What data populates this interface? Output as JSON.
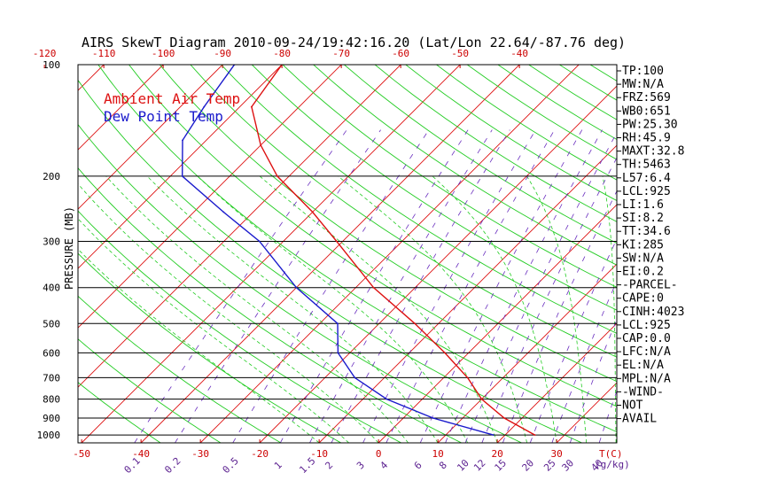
{
  "chart_data": {
    "type": "line",
    "title": "AIRS SkewT Diagram 2010-09-24/19:42:16.20 (Lat/Lon 22.64/-87.76 deg)",
    "ylabel": "PRESSURE (MB)",
    "pressure_ticks": [
      100,
      200,
      300,
      400,
      500,
      600,
      700,
      800,
      900,
      1000
    ],
    "ylim": [
      1050,
      100
    ],
    "top_temp_ticks": [
      -120,
      -110,
      -100,
      -90,
      -80,
      -70,
      -60,
      -50,
      -40
    ],
    "bottom_temp_ticks": [
      -50,
      -40,
      -30,
      -20,
      -10,
      0,
      10,
      20,
      30
    ],
    "bottom_temp_unit": "T(C)",
    "mixing_ratio_labels": [
      "0.1",
      "0.2",
      "0.5",
      "1",
      "1.5",
      "2",
      "3",
      "4",
      "6",
      "8",
      "10",
      "12",
      "15",
      "20",
      "25",
      "30",
      "40"
    ],
    "mixing_ratio_unit": "(g/kg)",
    "legend": [
      {
        "label": "Ambient Air Temp",
        "color": "#dd1111"
      },
      {
        "label": "Dew Point Temp",
        "color": "#1a1acc"
      }
    ],
    "grid": true,
    "series": [
      {
        "name": "Ambient Air Temp",
        "color": "#dd1111",
        "points": [
          {
            "p": 100,
            "t": -80
          },
          {
            "p": 130,
            "t": -78
          },
          {
            "p": 165,
            "t": -70
          },
          {
            "p": 200,
            "t": -62
          },
          {
            "p": 250,
            "t": -50
          },
          {
            "p": 300,
            "t": -41
          },
          {
            "p": 400,
            "t": -27
          },
          {
            "p": 500,
            "t": -14
          },
          {
            "p": 600,
            "t": -4
          },
          {
            "p": 700,
            "t": 4
          },
          {
            "p": 800,
            "t": 10
          },
          {
            "p": 900,
            "t": 17
          },
          {
            "p": 1000,
            "t": 25
          }
        ]
      },
      {
        "name": "Dew Point Temp",
        "color": "#1a1acc",
        "points": [
          {
            "p": 100,
            "t": -88
          },
          {
            "p": 130,
            "t": -86
          },
          {
            "p": 160,
            "t": -84
          },
          {
            "p": 200,
            "t": -78
          },
          {
            "p": 250,
            "t": -65
          },
          {
            "p": 300,
            "t": -54
          },
          {
            "p": 400,
            "t": -40
          },
          {
            "p": 500,
            "t": -27
          },
          {
            "p": 600,
            "t": -22
          },
          {
            "p": 700,
            "t": -15
          },
          {
            "p": 800,
            "t": -6
          },
          {
            "p": 900,
            "t": 5
          },
          {
            "p": 1000,
            "t": 18
          }
        ]
      }
    ]
  },
  "indices": [
    "TP:100",
    "MW:N/A",
    "FRZ:569",
    "WB0:651",
    "PW:25.30",
    "RH:45.9",
    "MAXT:32.8",
    "TH:5463",
    "L57:6.4",
    "LCL:925",
    "LI:1.6",
    "SI:8.2",
    "TT:34.6",
    "KI:285",
    "SW:N/A",
    "EI:0.2",
    "-PARCEL-",
    "CAPE:0",
    "CINH:4023",
    "LCL:925",
    "CAP:0.0",
    "LFC:N/A",
    "EL:N/A",
    "MPL:N/A",
    "-WIND-",
    "NOT",
    "AVAIL"
  ],
  "colors": {
    "isotherm": "#dd1111",
    "dry_adiabat": "#22cc22",
    "moist_adiabat": "#22cc22",
    "mixing_ratio": "#6a2fbf",
    "isobar": "#000000"
  }
}
